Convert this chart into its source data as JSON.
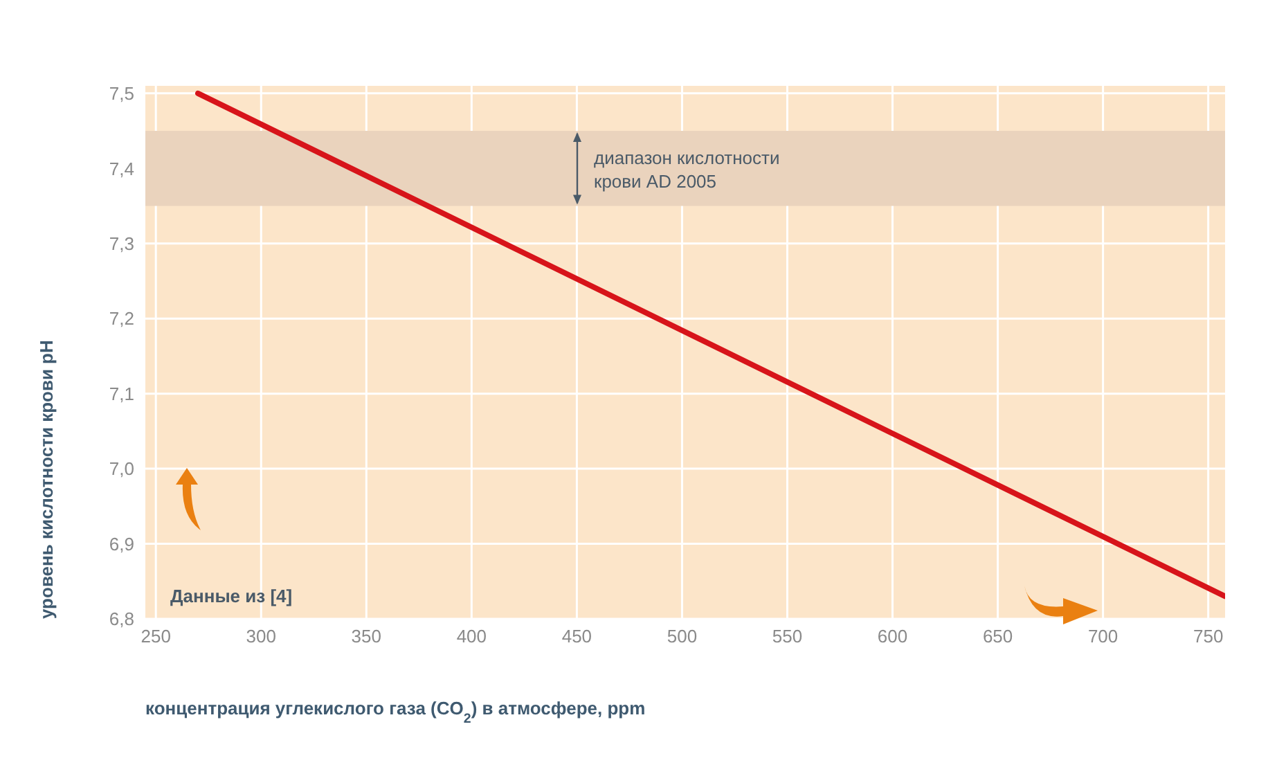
{
  "chart_data": {
    "type": "line",
    "xlabel": "концентрация углекислого газа (CO$_{2}$) в атмосфере, ppm",
    "ylabel": "уровень кислотности крови pH",
    "x": [
      270,
      758
    ],
    "series": [
      {
        "color": "#d7141a",
        "values": [
          7.5,
          6.83
        ]
      }
    ],
    "xlim": [
      245,
      758
    ],
    "xticks": [
      250,
      300,
      350,
      400,
      450,
      500,
      550,
      600,
      650,
      700,
      750
    ],
    "ylim": [
      6.8,
      7.51
    ],
    "yticks": [
      {
        "value": 6.8,
        "label": "6,8"
      },
      {
        "value": 6.9,
        "label": "6,9"
      },
      {
        "value": 7.0,
        "label": "7,0"
      },
      {
        "value": 7.1,
        "label": "7,1"
      },
      {
        "value": 7.2,
        "label": "7,2"
      },
      {
        "value": 7.3,
        "label": "7,3"
      },
      {
        "value": 7.4,
        "label": "7,4"
      },
      {
        "value": 7.5,
        "label": "7,5"
      }
    ],
    "bands": [
      {
        "axis": "y",
        "from": 7.35,
        "to": 7.45,
        "label": "диапазон кислотности крови AD 2005",
        "color": "#ead3bd"
      }
    ],
    "annotations": [
      "Данные из [4]"
    ],
    "grid": true,
    "marker": "none",
    "line_style": "solid"
  }
}
